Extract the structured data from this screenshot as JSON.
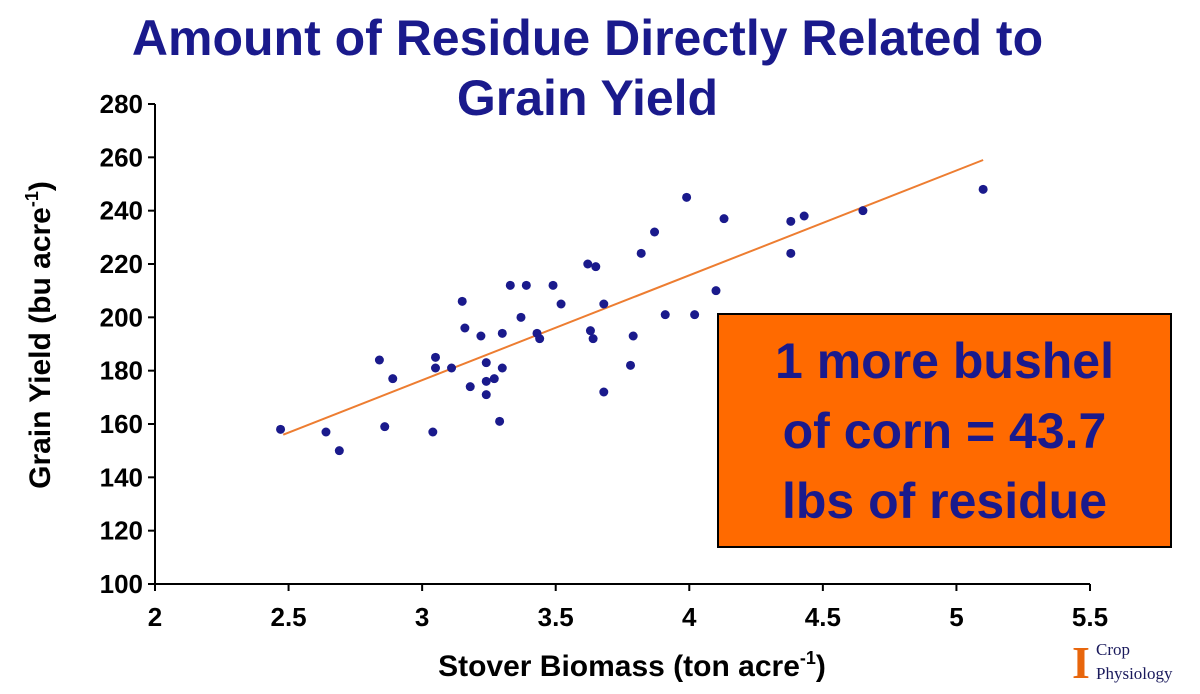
{
  "title": {
    "line1": "Amount of Residue Directly Related to",
    "line2": "Grain Yield"
  },
  "callout": {
    "line1": "1 more bushel",
    "line2": "of corn = 43.7",
    "line3": "lbs of residue",
    "background": "#ff6a00",
    "text_color": "#1a1a8c"
  },
  "logo": {
    "mark": "I",
    "line1": "Crop",
    "line2": "Physiology",
    "mark_color": "#e8660c"
  },
  "chart_data": {
    "type": "scatter",
    "xlabel": "Stover Biomass (ton acre",
    "xlabel_sup": "-1",
    "xlabel_end": ")",
    "ylabel": "Grain Yield (bu acre",
    "ylabel_sup": "-1",
    "ylabel_end": ")",
    "xlim": [
      2,
      5.5
    ],
    "ylim": [
      100,
      280
    ],
    "x_ticks": [
      "2",
      "2.5",
      "3",
      "3.5",
      "4",
      "4.5",
      "5",
      "5.5"
    ],
    "y_ticks": [
      "100",
      "120",
      "140",
      "160",
      "180",
      "200",
      "220",
      "240",
      "260",
      "280"
    ],
    "grid": false,
    "point_color": "#1a1a8c",
    "trendline_color": "#ed7d31",
    "trendline": {
      "x": [
        2.48,
        5.1
      ],
      "y": [
        156,
        259
      ]
    },
    "points": [
      {
        "x": 2.47,
        "y": 158
      },
      {
        "x": 2.64,
        "y": 157
      },
      {
        "x": 2.69,
        "y": 150
      },
      {
        "x": 2.84,
        "y": 184
      },
      {
        "x": 2.86,
        "y": 159
      },
      {
        "x": 2.89,
        "y": 177
      },
      {
        "x": 3.04,
        "y": 157
      },
      {
        "x": 3.05,
        "y": 185
      },
      {
        "x": 3.05,
        "y": 181
      },
      {
        "x": 3.11,
        "y": 181
      },
      {
        "x": 3.15,
        "y": 206
      },
      {
        "x": 3.16,
        "y": 196
      },
      {
        "x": 3.18,
        "y": 174
      },
      {
        "x": 3.22,
        "y": 193
      },
      {
        "x": 3.24,
        "y": 183
      },
      {
        "x": 3.24,
        "y": 176
      },
      {
        "x": 3.24,
        "y": 171
      },
      {
        "x": 3.27,
        "y": 177
      },
      {
        "x": 3.29,
        "y": 161
      },
      {
        "x": 3.3,
        "y": 194
      },
      {
        "x": 3.3,
        "y": 181
      },
      {
        "x": 3.33,
        "y": 212
      },
      {
        "x": 3.37,
        "y": 200
      },
      {
        "x": 3.39,
        "y": 212
      },
      {
        "x": 3.43,
        "y": 194
      },
      {
        "x": 3.44,
        "y": 192
      },
      {
        "x": 3.49,
        "y": 212
      },
      {
        "x": 3.52,
        "y": 205
      },
      {
        "x": 3.62,
        "y": 220
      },
      {
        "x": 3.63,
        "y": 195
      },
      {
        "x": 3.64,
        "y": 192
      },
      {
        "x": 3.65,
        "y": 219
      },
      {
        "x": 3.68,
        "y": 172
      },
      {
        "x": 3.68,
        "y": 205
      },
      {
        "x": 3.78,
        "y": 182
      },
      {
        "x": 3.79,
        "y": 193
      },
      {
        "x": 3.82,
        "y": 224
      },
      {
        "x": 3.87,
        "y": 232
      },
      {
        "x": 3.91,
        "y": 201
      },
      {
        "x": 3.99,
        "y": 245
      },
      {
        "x": 4.02,
        "y": 201
      },
      {
        "x": 4.1,
        "y": 210
      },
      {
        "x": 4.13,
        "y": 237
      },
      {
        "x": 4.38,
        "y": 224
      },
      {
        "x": 4.38,
        "y": 236
      },
      {
        "x": 4.43,
        "y": 238
      },
      {
        "x": 4.65,
        "y": 240
      },
      {
        "x": 5.1,
        "y": 248
      }
    ]
  }
}
